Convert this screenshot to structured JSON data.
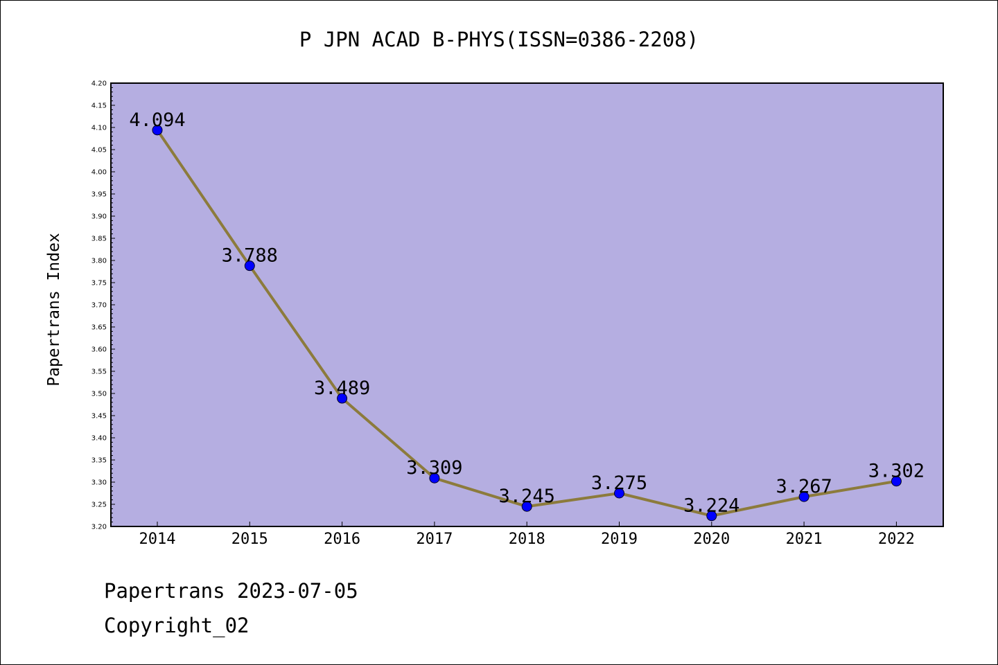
{
  "chart_data": {
    "type": "line",
    "title": "P JPN ACAD B-PHYS(ISSN=0386-2208)",
    "xlabel": "",
    "ylabel": "Papertrans Index",
    "categories": [
      "2014",
      "2015",
      "2016",
      "2017",
      "2018",
      "2019",
      "2020",
      "2021",
      "2022"
    ],
    "series": [
      {
        "values": [
          4.094,
          3.788,
          3.489,
          3.309,
          3.245,
          3.275,
          3.224,
          3.267,
          3.302
        ]
      }
    ],
    "data_labels": [
      "4.094",
      "3.788",
      "3.489",
      "3.309",
      "3.245",
      "3.275",
      "3.224",
      "3.267",
      "3.302"
    ],
    "ylim": [
      3.2,
      4.2
    ],
    "ytick_step": 0.05,
    "grid": false,
    "colors": {
      "plot_background": "#b5aee1",
      "line": "#8c7b3c",
      "marker": "#0000ff"
    }
  },
  "footer": {
    "date_text": "Papertrans 2023-07-05",
    "copyright_text": "Copyright_02"
  }
}
